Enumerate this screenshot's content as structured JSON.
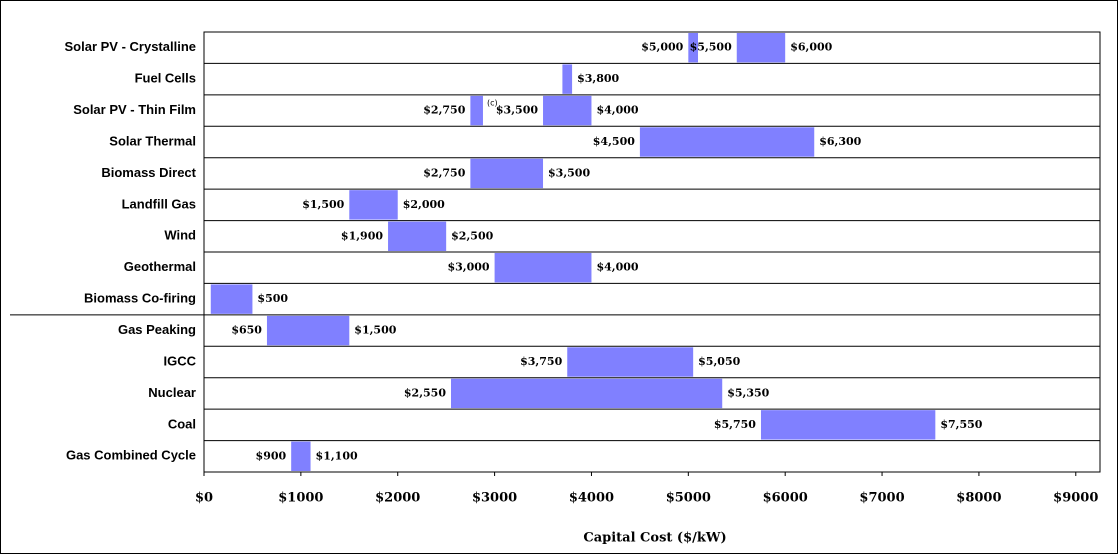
{
  "chart_data": {
    "type": "range_bar",
    "x_label": "Capital Cost ($/kW)",
    "color": "#8080ff",
    "categories": [
      "Solar PV - Crystalline",
      "Fuel Cells",
      "Solar PV - Thin Film",
      "Solar Thermal",
      "Biomass Direct",
      "Landfill Gas",
      "Wind",
      "Geothermal",
      "Biomass Co-firing",
      "Gas Peaking",
      "IGCC",
      "Nuclear",
      "Coal",
      "Gas Combined Cycle"
    ],
    "ranges": [
      [
        {
          "low": 5000,
          "high": 5100,
          "low_label": "$5,000"
        },
        {
          "low": 5500,
          "high": 6000,
          "low_label": "$5,500",
          "high_label": "$6,000"
        }
      ],
      [
        {
          "low": 3700,
          "high": 3800,
          "high_label": "$3,800"
        }
      ],
      [
        {
          "low": 2750,
          "high": 2880,
          "low_label": "$2,750"
        },
        {
          "low": 3500,
          "high": 4000,
          "low_label": "$3,500",
          "high_label": "$4,000"
        }
      ],
      [
        {
          "low": 4500,
          "high": 6300,
          "low_label": "$4,500",
          "high_label": "$6,300"
        }
      ],
      [
        {
          "low": 2750,
          "high": 3500,
          "low_label": "$2,750",
          "high_label": "$3,500"
        }
      ],
      [
        {
          "low": 1500,
          "high": 2000,
          "low_label": "$1,500",
          "high_label": "$2,000"
        }
      ],
      [
        {
          "low": 1900,
          "high": 2500,
          "low_label": "$1,900",
          "high_label": "$2,500"
        }
      ],
      [
        {
          "low": 3000,
          "high": 4000,
          "low_label": "$3,000",
          "high_label": "$4,000"
        }
      ],
      [
        {
          "low": 70,
          "high": 500,
          "high_label": "$500"
        }
      ],
      [
        {
          "low": 650,
          "high": 1500,
          "low_label": "$650",
          "high_label": "$1,500"
        }
      ],
      [
        {
          "low": 3750,
          "high": 5050,
          "low_label": "$3,750",
          "high_label": "$5,050"
        }
      ],
      [
        {
          "low": 2550,
          "high": 5350,
          "low_label": "$2,550",
          "high_label": "$5,350"
        }
      ],
      [
        {
          "low": 5750,
          "high": 7550,
          "low_label": "$5,750",
          "high_label": "$7,550"
        }
      ],
      [
        {
          "low": 900,
          "high": 1100,
          "low_label": "$900",
          "high_label": "$1,100"
        }
      ]
    ],
    "annotation": "(c)",
    "xlim": [
      0,
      9250
    ],
    "xticks": [
      {
        "value": 0,
        "label": "$0"
      },
      {
        "value": 1000,
        "label": "$1000"
      },
      {
        "value": 2000,
        "label": "$2000"
      },
      {
        "value": 3000,
        "label": "$3000"
      },
      {
        "value": 4000,
        "label": "$4000"
      },
      {
        "value": 5000,
        "label": "$5000"
      },
      {
        "value": 6000,
        "label": "$6000"
      },
      {
        "value": 7000,
        "label": "$7000"
      },
      {
        "value": 8000,
        "label": "$8000"
      },
      {
        "value": 9000,
        "label": "$9000"
      }
    ]
  }
}
